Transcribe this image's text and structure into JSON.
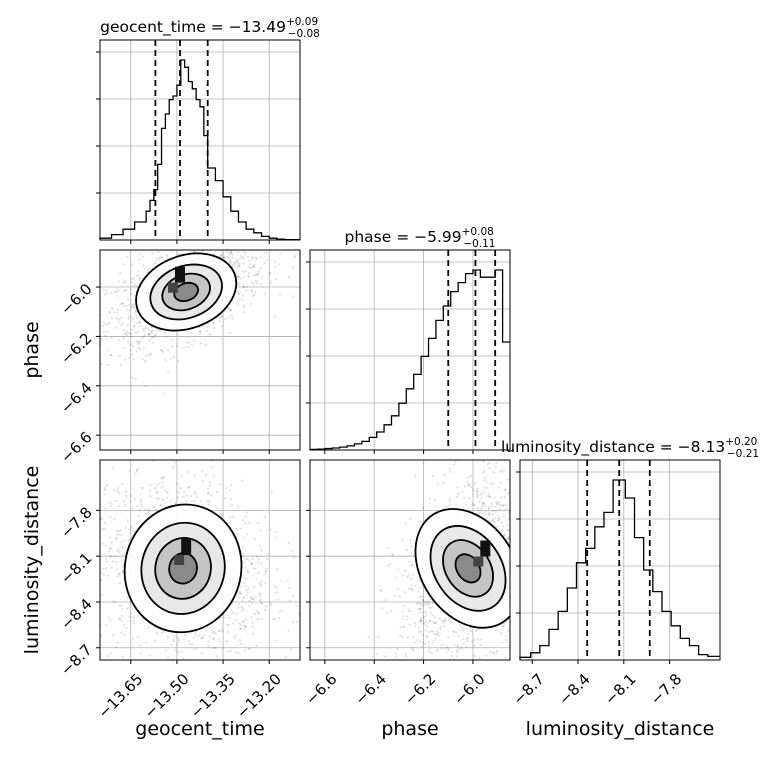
{
  "chart_data": {
    "type": "corner",
    "parameters": [
      "geocent_time",
      "phase",
      "luminosity_distance"
    ],
    "axis_labels": {
      "geocent_time": "geocent_time",
      "phase": "phase",
      "luminosity_distance": "luminosity_distance"
    },
    "titles": [
      {
        "param": "geocent_time",
        "prefix": "geocent_time = −13.49",
        "plus": "+0.09",
        "minus": "−0.08"
      },
      {
        "param": "phase",
        "prefix": "phase = −5.99",
        "plus": "+0.08",
        "minus": "−0.11"
      },
      {
        "param": "luminosity_distance",
        "prefix": "luminosity_distance = −8.13",
        "plus": "+0.20",
        "minus": "−0.21"
      }
    ],
    "ranges": {
      "geocent_time": [
        -13.75,
        -13.1
      ],
      "phase": [
        -6.66,
        -5.85
      ],
      "luminosity_distance": [
        -8.78,
        -7.47
      ]
    },
    "ticks": {
      "geocent_time": {
        "values": [
          -13.65,
          -13.5,
          -13.35,
          -13.2
        ],
        "labels": [
          "−13.65",
          "−13.50",
          "−13.35",
          "−13.20"
        ]
      },
      "phase": {
        "values": [
          -6.6,
          -6.4,
          -6.2,
          -6.0
        ],
        "labels": [
          "−6.6",
          "−6.4",
          "−6.2",
          "−6.0"
        ]
      },
      "luminosity_distance": {
        "values": [
          -8.7,
          -8.4,
          -8.1,
          -7.8
        ],
        "labels": [
          "−8.7",
          "−8.4",
          "−8.1",
          "−7.8"
        ]
      }
    },
    "quantiles": {
      "geocent_time": [
        -13.57,
        -13.49,
        -13.4
      ],
      "phase": [
        -6.1,
        -5.99,
        -5.91
      ],
      "luminosity_distance": [
        -8.34,
        -8.13,
        -7.93
      ]
    },
    "histograms": {
      "geocent_time": {
        "edges": [
          -13.75,
          -13.7125,
          -13.675,
          -13.6375,
          -13.6,
          -13.5875,
          -13.575,
          -13.5625,
          -13.55,
          -13.5375,
          -13.525,
          -13.5125,
          -13.5,
          -13.4875,
          -13.475,
          -13.4625,
          -13.45,
          -13.4375,
          -13.425,
          -13.4125,
          -13.4,
          -13.375,
          -13.35,
          -13.325,
          -13.3,
          -13.275,
          -13.25,
          -13.225,
          -13.2,
          -13.175,
          -13.15,
          -13.1
        ],
        "counts": [
          1,
          3,
          6,
          10,
          16,
          22,
          28,
          42,
          62,
          70,
          78,
          80,
          86,
          100,
          96,
          88,
          84,
          78,
          74,
          58,
          40,
          33,
          24,
          16,
          10,
          6,
          4,
          2,
          1,
          0.5,
          0.2
        ]
      },
      "phase": {
        "edges": [
          -6.66,
          -6.63,
          -6.6,
          -6.57,
          -6.54,
          -6.51,
          -6.48,
          -6.45,
          -6.42,
          -6.39,
          -6.36,
          -6.33,
          -6.3,
          -6.27,
          -6.24,
          -6.21,
          -6.18,
          -6.15,
          -6.12,
          -6.09,
          -6.06,
          -6.03,
          -6.0,
          -5.97,
          -5.94,
          -5.91,
          -5.88,
          -5.85
        ],
        "counts": [
          0.3,
          0.5,
          0.8,
          1.1,
          1.6,
          2.3,
          3.4,
          4.8,
          7,
          10,
          14,
          19,
          26,
          34,
          42,
          52,
          62,
          72,
          80,
          88,
          93,
          98,
          100,
          96,
          96,
          100,
          60
        ]
      },
      "luminosity_distance": {
        "edges": [
          -8.78,
          -8.71,
          -8.65,
          -8.59,
          -8.53,
          -8.47,
          -8.41,
          -8.35,
          -8.29,
          -8.23,
          -8.17,
          -8.13,
          -8.09,
          -8.03,
          -7.97,
          -7.91,
          -7.85,
          -7.79,
          -7.73,
          -7.67,
          -7.61,
          -7.55,
          -7.47
        ],
        "counts": [
          1.5,
          4,
          8,
          17,
          27,
          40,
          54,
          62,
          74,
          82,
          100,
          100,
          90,
          68,
          50,
          38,
          27,
          19,
          12,
          8,
          3,
          2
        ]
      }
    },
    "density_2d": [
      {
        "x": "geocent_time",
        "y": "phase",
        "center": [
          -13.47,
          -6.02
        ],
        "spread": [
          0.08,
          0.07
        ],
        "tilt": 0.55,
        "peak": [
          -13.49,
          -5.95
        ]
      },
      {
        "x": "geocent_time",
        "y": "luminosity_distance",
        "center": [
          -13.48,
          -8.18
        ],
        "spread": [
          0.09,
          0.2
        ],
        "tilt": -0.2,
        "peak": [
          -13.47,
          -8.04
        ]
      },
      {
        "x": "phase",
        "y": "luminosity_distance",
        "center": [
          -6.02,
          -8.18
        ],
        "spread": [
          0.09,
          0.2
        ],
        "tilt": 0.45,
        "peak": [
          -5.95,
          -8.05
        ]
      }
    ]
  }
}
